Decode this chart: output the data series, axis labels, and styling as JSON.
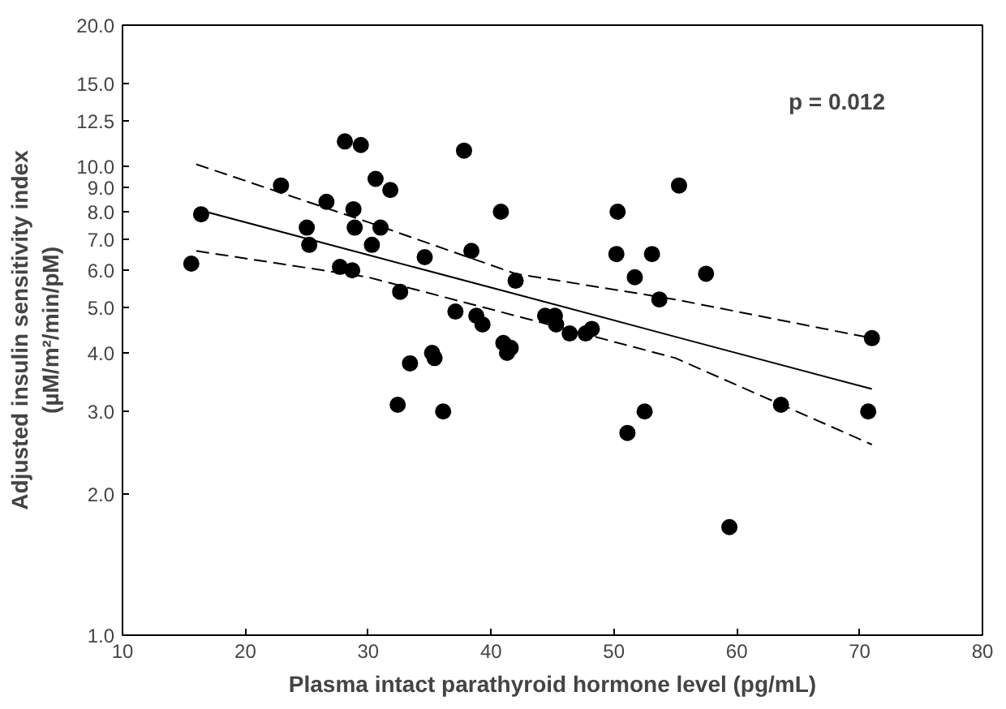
{
  "chart_data": {
    "type": "scatter",
    "xlabel": "Plasma intact parathyroid hormone level (pg/mL)",
    "ylabel": "Adjusted insulin sensitivity index\n(µM/m²/min/pM)",
    "log": "y",
    "grid": false,
    "marker": "circle",
    "annotations": [
      "p = 0.012"
    ],
    "xlim": [
      10,
      80
    ],
    "xticks": [
      10,
      20,
      30,
      40,
      50,
      60,
      70,
      80
    ],
    "ylim": [
      1,
      20
    ],
    "yticks": [
      {
        "value": 1,
        "label": "1.0"
      },
      {
        "value": 2,
        "label": "2.0"
      },
      {
        "value": 3,
        "label": "3.0"
      },
      {
        "value": 4,
        "label": "4.0"
      },
      {
        "value": 5,
        "label": "5.0"
      },
      {
        "value": 6,
        "label": "6.0"
      },
      {
        "value": 7,
        "label": "7.0"
      },
      {
        "value": 8,
        "label": "8.0"
      },
      {
        "value": 9,
        "label": "9.0"
      },
      {
        "value": 10,
        "label": "10.0"
      },
      {
        "value": 12.5,
        "label": "12.5"
      },
      {
        "value": 15,
        "label": "15.0"
      },
      {
        "value": 20,
        "label": "20.0"
      }
    ],
    "series": [
      {
        "color": "#000000",
        "x": [
          15.6,
          16.4,
          22.9,
          25,
          25.2,
          26.6,
          27.7,
          28.1,
          28.7,
          28.8,
          28.9,
          29.4,
          30.3,
          30.6,
          31.0,
          31.8,
          32.4,
          32.6,
          33.4,
          34.6,
          35.2,
          35.4,
          36.1,
          37.1,
          37.8,
          38.4,
          38.8,
          39.3,
          40.8,
          41.0,
          41.3,
          41.6,
          42.0,
          44.4,
          45.2,
          45.3,
          46.4,
          47.7,
          48.2,
          50.2,
          50.3,
          51.1,
          51.7,
          52.5,
          53.1,
          53.7,
          55.3,
          57.5,
          59.4,
          63.6,
          70.7,
          71.0
        ],
        "values": [
          6.2,
          7.9,
          9.1,
          7.4,
          6.8,
          8.4,
          6.1,
          11.3,
          6.0,
          8.1,
          7.4,
          11.1,
          6.8,
          9.4,
          7.4,
          8.9,
          3.1,
          5.4,
          3.8,
          6.4,
          4.0,
          3.9,
          3.0,
          4.9,
          10.8,
          6.6,
          4.8,
          4.6,
          8.0,
          4.2,
          4.0,
          4.1,
          5.7,
          4.8,
          4.8,
          4.6,
          4.4,
          4.4,
          4.5,
          6.5,
          8.0,
          2.7,
          5.8,
          3.0,
          6.5,
          5.2,
          9.1,
          5.9,
          1.7,
          3.1,
          3.0,
          4.3
        ]
      },
      {
        "type": "line",
        "marker": "none",
        "color": "#000000",
        "line_style": "solid",
        "x": [
          16,
          30,
          42,
          55,
          71
        ],
        "values": [
          8.1,
          6.47,
          5.34,
          4.33,
          3.35
        ]
      },
      {
        "type": "line",
        "marker": "none",
        "color": "#000000",
        "line_style": "dashed",
        "x": [
          16,
          30,
          42,
          55,
          71
        ],
        "values": [
          10.1,
          7.6,
          5.9,
          5.2,
          4.3
        ]
      },
      {
        "type": "line",
        "marker": "none",
        "color": "#000000",
        "line_style": "dashed",
        "x": [
          16,
          30,
          42,
          55,
          71
        ],
        "values": [
          6.6,
          5.8,
          4.8,
          3.9,
          2.55
        ]
      }
    ]
  }
}
